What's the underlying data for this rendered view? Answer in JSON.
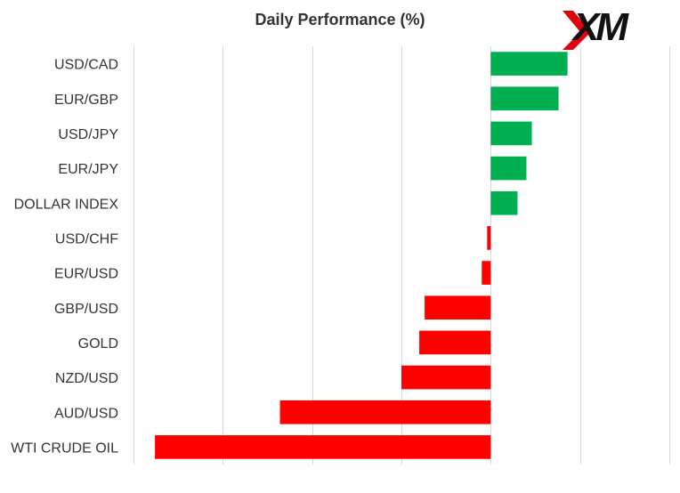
{
  "logo": {
    "text": "XM",
    "accent_color": "#e3000f"
  },
  "chart_data": {
    "type": "bar",
    "orientation": "horizontal",
    "title": "Daily Performance (%)",
    "xlabel": "",
    "ylabel": "",
    "categories": [
      "USD/CAD",
      "EUR/GBP",
      "USD/JPY",
      "EUR/JPY",
      "DOLLAR INDEX",
      "USD/CHF",
      "EUR/USD",
      "GBP/USD",
      "GOLD",
      "NZD/USD",
      "AUD/USD",
      "WTI CRUDE OIL"
    ],
    "values": [
      0.43,
      0.38,
      0.23,
      0.2,
      0.15,
      -0.02,
      -0.05,
      -0.37,
      -0.4,
      -0.5,
      -1.18,
      -1.88
    ],
    "xlim": [
      -2.0,
      1.0
    ],
    "grid": true,
    "colors": {
      "positive": "#00b050",
      "negative": "#ff0000",
      "grid": "#d9d9d9"
    }
  }
}
